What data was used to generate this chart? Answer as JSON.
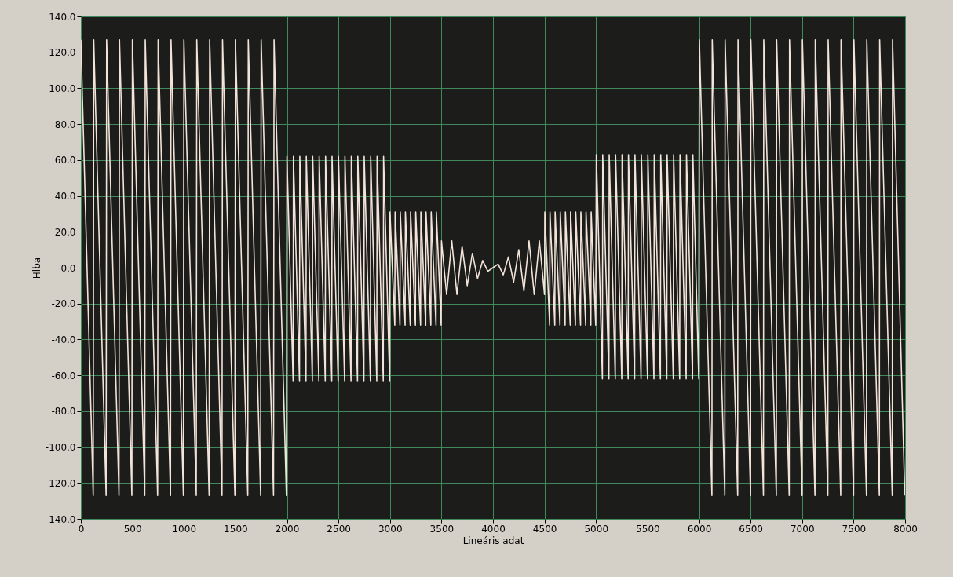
{
  "chart_data": {
    "type": "line",
    "xlabel": "Lineáris adat",
    "ylabel": "Hlba",
    "x": [
      0,
      120,
      125,
      245,
      250,
      370,
      375,
      495,
      500,
      620,
      625,
      745,
      750,
      870,
      875,
      995,
      1000,
      1120,
      1125,
      1245,
      1250,
      1370,
      1375,
      1495,
      1500,
      1620,
      1625,
      1745,
      1750,
      1870,
      1875,
      1995,
      2000,
      2060,
      2063,
      2122,
      2125,
      2185,
      2188,
      2247,
      2250,
      2310,
      2313,
      2372,
      2375,
      2435,
      2438,
      2497,
      2500,
      2560,
      2563,
      2622,
      2625,
      2685,
      2688,
      2747,
      2750,
      2810,
      2813,
      2872,
      2875,
      2935,
      2938,
      2997,
      3000,
      3047,
      3050,
      3097,
      3100,
      3147,
      3150,
      3197,
      3200,
      3247,
      3250,
      3297,
      3300,
      3347,
      3350,
      3397,
      3400,
      3447,
      3450,
      3497,
      3500,
      3550,
      3600,
      3650,
      3700,
      3750,
      3800,
      3850,
      3900,
      3950,
      4000,
      4050,
      4100,
      4150,
      4200,
      4250,
      4300,
      4350,
      4400,
      4450,
      4500,
      4503,
      4550,
      4553,
      4600,
      4603,
      4650,
      4653,
      4700,
      4703,
      4750,
      4753,
      4800,
      4803,
      4850,
      4853,
      4900,
      4903,
      4950,
      4953,
      4997,
      5003,
      5062,
      5065,
      5125,
      5128,
      5187,
      5190,
      5250,
      5253,
      5312,
      5315,
      5375,
      5378,
      5437,
      5440,
      5500,
      5503,
      5562,
      5565,
      5625,
      5628,
      5687,
      5690,
      5750,
      5753,
      5812,
      5815,
      5875,
      5878,
      5937,
      5940,
      5997,
      6003,
      6125,
      6128,
      6250,
      6253,
      6375,
      6378,
      6500,
      6503,
      6625,
      6628,
      6750,
      6753,
      6875,
      6878,
      7000,
      7003,
      7125,
      7128,
      7250,
      7253,
      7375,
      7378,
      7500,
      7503,
      7625,
      7628,
      7750,
      7753,
      7875,
      7878,
      7997
    ],
    "series": [
      {
        "color": "#f3e4da",
        "values": [
          127,
          -127,
          127,
          -127,
          127,
          -127,
          127,
          -127,
          127,
          -127,
          127,
          -127,
          127,
          -127,
          127,
          -127,
          127,
          -127,
          127,
          -127,
          127,
          -127,
          127,
          -127,
          127,
          -127,
          127,
          -127,
          127,
          -127,
          127,
          -127,
          62,
          -63,
          62,
          -63,
          62,
          -63,
          62,
          -63,
          62,
          -63,
          62,
          -63,
          62,
          -63,
          62,
          -63,
          62,
          -63,
          62,
          -63,
          62,
          -63,
          62,
          -63,
          62,
          -63,
          62,
          -63,
          62,
          -63,
          62,
          -63,
          31,
          -32,
          31,
          -32,
          31,
          -32,
          31,
          -32,
          31,
          -32,
          31,
          -32,
          31,
          -32,
          31,
          -32,
          31,
          -32,
          31,
          -32,
          15,
          -15,
          15,
          -15,
          12,
          -10,
          8,
          -6,
          4,
          -2,
          0,
          2,
          -4,
          6,
          -8,
          10,
          -13,
          15,
          -15,
          15,
          -15,
          31,
          -32,
          31,
          -32,
          31,
          -32,
          31,
          -32,
          31,
          -32,
          31,
          -32,
          31,
          -32,
          31,
          -32,
          31,
          -32,
          31,
          -32,
          63,
          -62,
          63,
          -62,
          63,
          -62,
          63,
          -62,
          63,
          -62,
          63,
          -62,
          63,
          -62,
          63,
          -62,
          63,
          -62,
          63,
          -62,
          63,
          -62,
          63,
          -62,
          63,
          -62,
          63,
          -62,
          63,
          -62,
          63,
          -62,
          127,
          -127,
          127,
          -127,
          127,
          -127,
          127,
          -127,
          127,
          -127,
          127,
          -127,
          127,
          -127,
          127,
          -127,
          127,
          -127,
          127,
          -127,
          127,
          -127,
          127,
          -127,
          127,
          -127,
          127,
          -127,
          127,
          -127,
          127,
          -127
        ]
      }
    ],
    "xlim": [
      0,
      8000
    ],
    "xticks": [
      0,
      500,
      1000,
      1500,
      2000,
      2500,
      3000,
      3500,
      4000,
      4500,
      5000,
      5500,
      6000,
      6500,
      7000,
      7500,
      8000
    ],
    "ylim": [
      -140,
      140
    ],
    "yticks": [
      {
        "value": -140,
        "label": "-140.0"
      },
      {
        "value": -120,
        "label": "-120.0"
      },
      {
        "value": -100,
        "label": "-100.0"
      },
      {
        "value": -80,
        "label": "-80.0"
      },
      {
        "value": -60,
        "label": "-60.0"
      },
      {
        "value": -40,
        "label": "-40.0"
      },
      {
        "value": -20,
        "label": "-20.0"
      },
      {
        "value": 0,
        "label": "0.0"
      },
      {
        "value": 20,
        "label": "20.0"
      },
      {
        "value": 40,
        "label": "40.0"
      },
      {
        "value": 60,
        "label": "60.0"
      },
      {
        "value": 80,
        "label": "80.0"
      },
      {
        "value": 100,
        "label": "100.0"
      },
      {
        "value": 120,
        "label": "120.0"
      },
      {
        "value": 140,
        "label": "140.0"
      }
    ],
    "grid": true,
    "marker": "none",
    "line_style": "solid"
  }
}
